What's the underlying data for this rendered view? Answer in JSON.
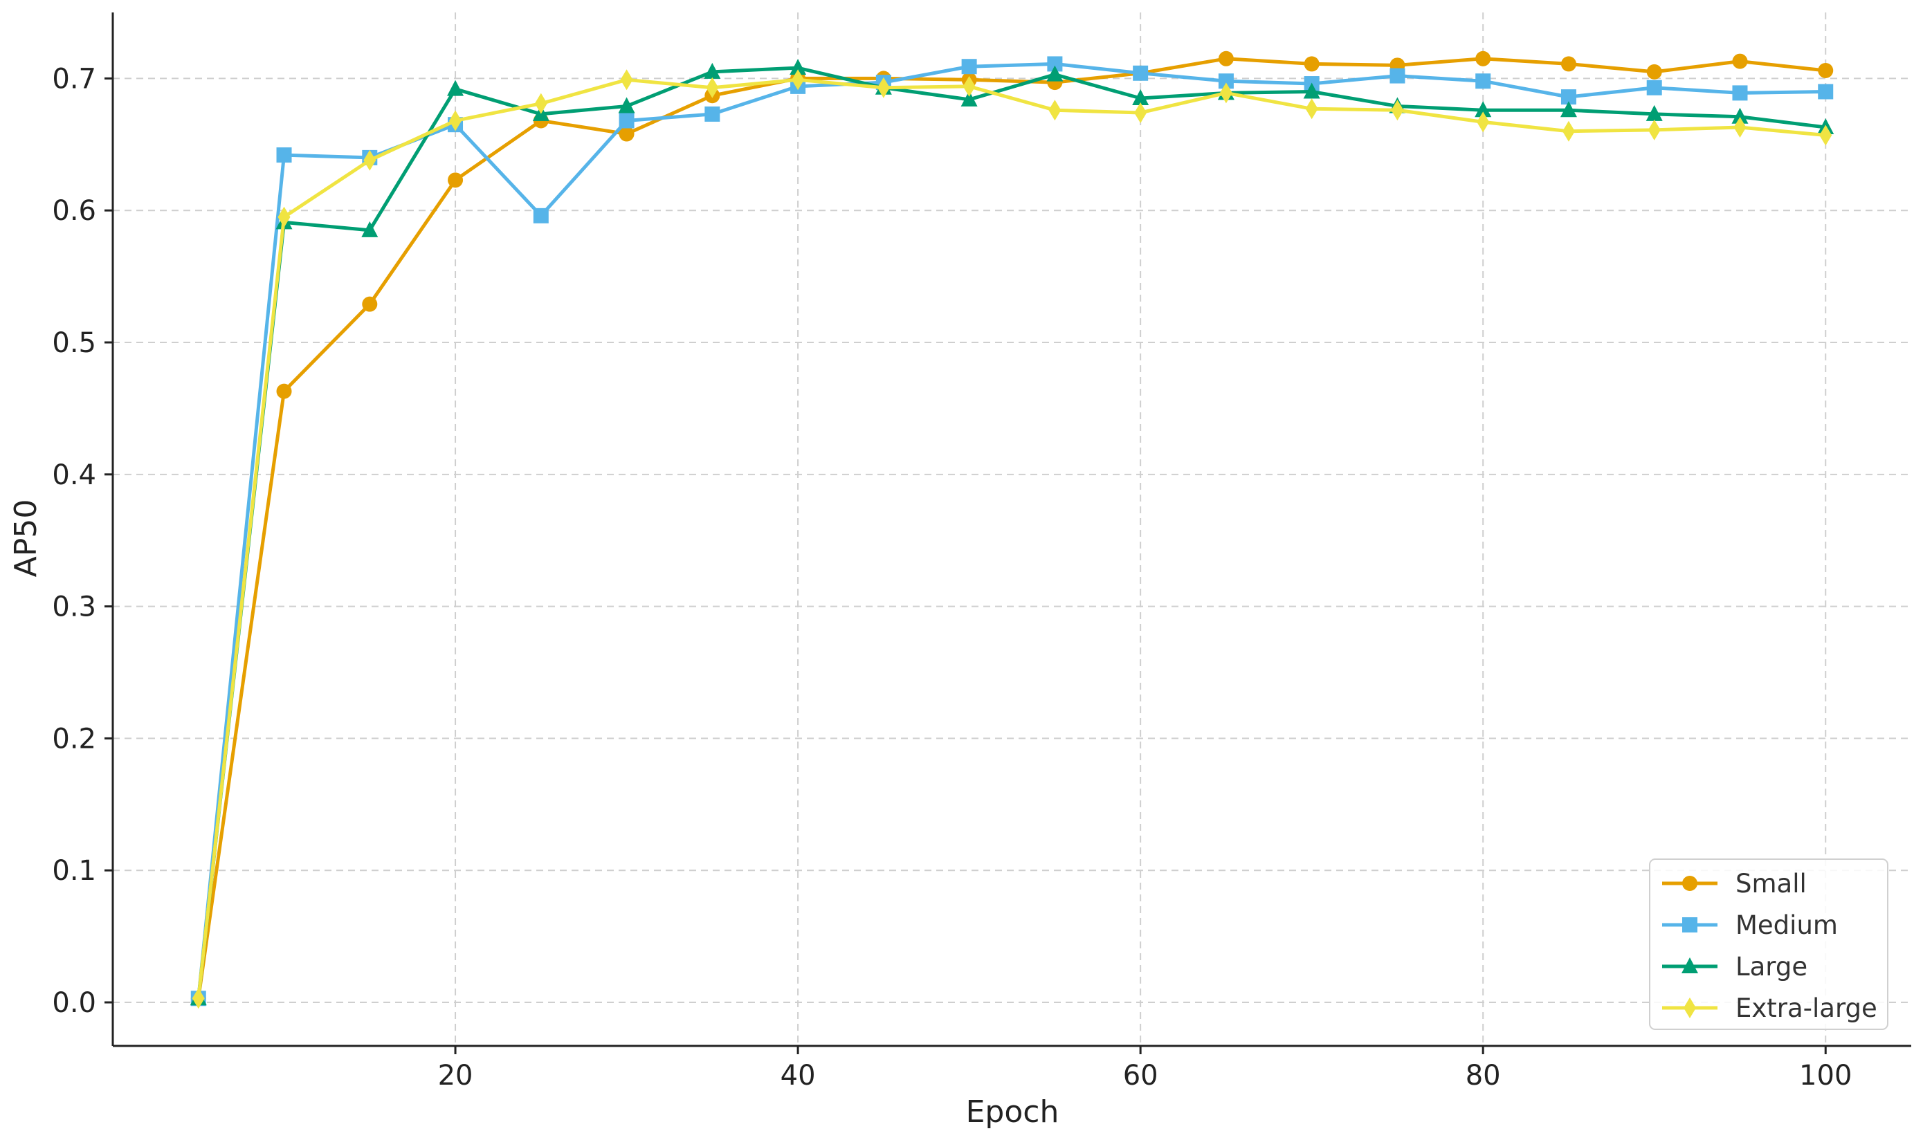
{
  "chart_data": {
    "type": "line",
    "title": "",
    "xlabel": "Epoch",
    "ylabel": "AP50",
    "xlim": [
      0,
      105
    ],
    "ylim": [
      -0.033,
      0.75
    ],
    "xticks": [
      20,
      40,
      60,
      80,
      100
    ],
    "yticks": [
      0.0,
      0.1,
      0.2,
      0.3,
      0.4,
      0.5,
      0.6,
      0.7
    ],
    "grid": true,
    "legend_position": "bottom-right",
    "x": [
      5,
      10,
      15,
      20,
      25,
      30,
      35,
      40,
      45,
      50,
      55,
      60,
      65,
      70,
      75,
      80,
      85,
      90,
      95,
      100
    ],
    "series": [
      {
        "name": "Small",
        "color": "#E69F00",
        "marker": "circle",
        "values": [
          0.003,
          0.463,
          0.529,
          0.623,
          0.668,
          0.658,
          0.687,
          0.7,
          0.7,
          0.699,
          0.697,
          0.704,
          0.715,
          0.711,
          0.71,
          0.715,
          0.711,
          0.705,
          0.713,
          0.706
        ]
      },
      {
        "name": "Medium",
        "color": "#56B4E9",
        "marker": "square",
        "values": [
          0.003,
          0.642,
          0.64,
          0.665,
          0.596,
          0.668,
          0.673,
          0.694,
          0.697,
          0.709,
          0.711,
          0.704,
          0.698,
          0.696,
          0.702,
          0.698,
          0.686,
          0.693,
          0.689,
          0.69
        ]
      },
      {
        "name": "Large",
        "color": "#009E73",
        "marker": "triangle",
        "values": [
          0.003,
          0.591,
          0.585,
          0.692,
          0.673,
          0.679,
          0.705,
          0.708,
          0.693,
          0.684,
          0.703,
          0.685,
          0.689,
          0.69,
          0.679,
          0.676,
          0.676,
          0.673,
          0.671,
          0.663
        ]
      },
      {
        "name": "Extra-large",
        "color": "#F0E442",
        "marker": "diamond",
        "values": [
          0.003,
          0.595,
          0.638,
          0.668,
          0.681,
          0.699,
          0.693,
          0.699,
          0.693,
          0.694,
          0.676,
          0.674,
          0.689,
          0.677,
          0.676,
          0.667,
          0.66,
          0.661,
          0.663,
          0.657
        ]
      }
    ]
  }
}
